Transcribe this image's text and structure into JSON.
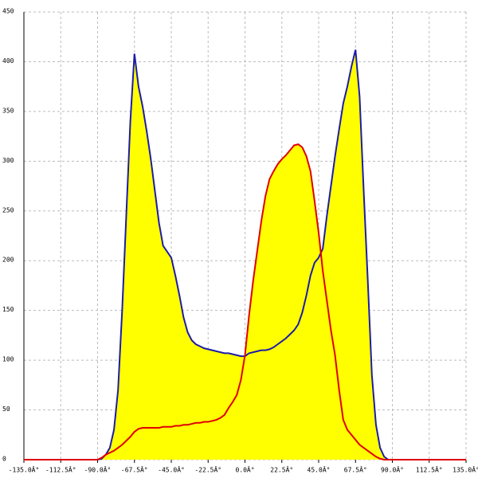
{
  "chart_data": {
    "type": "area",
    "x": [
      -135,
      -90,
      -87.5,
      -85,
      -82.5,
      -80,
      -77.5,
      -75,
      -72.5,
      -70,
      -67.5,
      -65,
      -62.5,
      -60,
      -57.5,
      -55,
      -52.5,
      -50,
      -47.5,
      -45,
      -42.5,
      -40,
      -37.5,
      -35,
      -32.5,
      -30,
      -27.5,
      -25,
      -22.5,
      -20,
      -17.5,
      -15,
      -12.5,
      -10,
      -7.5,
      -5,
      -2.5,
      0,
      2.5,
      5,
      7.5,
      10,
      12.5,
      15,
      17.5,
      20,
      22.5,
      25,
      27.5,
      30,
      32.5,
      35,
      37.5,
      40,
      42.5,
      45,
      47.5,
      50,
      52.5,
      55,
      57.5,
      60,
      62.5,
      65,
      67.5,
      70,
      72.5,
      75,
      77.5,
      80,
      82.5,
      85,
      87.5,
      90,
      135
    ],
    "series": [
      {
        "color": "#1c1ca8",
        "values": [
          0,
          0,
          1,
          5,
          12,
          30,
          70,
          150,
          245,
          340,
          408,
          375,
          355,
          330,
          302,
          270,
          238,
          215,
          209,
          203,
          185,
          165,
          143,
          128,
          120,
          116,
          114,
          112,
          111,
          110,
          109,
          108,
          107,
          107,
          106,
          105,
          104,
          104,
          107,
          108,
          109,
          110,
          110,
          111,
          113,
          116,
          119,
          122,
          126,
          130,
          136,
          148,
          165,
          185,
          198,
          203,
          212,
          245,
          275,
          305,
          332,
          358,
          375,
          395,
          412,
          365,
          270,
          180,
          85,
          35,
          12,
          3,
          0,
          0,
          0
        ]
      },
      {
        "color": "#e00000",
        "values": [
          0,
          0,
          2,
          5,
          7,
          9,
          12,
          15,
          19,
          23,
          28,
          31,
          32,
          32,
          32,
          32,
          32,
          33,
          33,
          33,
          34,
          34,
          35,
          35,
          36,
          37,
          37,
          38,
          38,
          39,
          40,
          42,
          45,
          52,
          58,
          65,
          80,
          105,
          145,
          180,
          210,
          240,
          265,
          282,
          290,
          297,
          302,
          306,
          311,
          316,
          317,
          314,
          305,
          290,
          260,
          228,
          190,
          160,
          130,
          105,
          70,
          40,
          30,
          25,
          20,
          15,
          12,
          9,
          6,
          3,
          1,
          0,
          0,
          0,
          0
        ]
      }
    ],
    "fill_color": "#ffff00",
    "xlim": [
      -135,
      135
    ],
    "xticks": [
      {
        "value": -135,
        "label": "-135.0Â°"
      },
      {
        "value": -112.5,
        "label": "-112.5Â°"
      },
      {
        "value": -90,
        "label": "-90.0Â°"
      },
      {
        "value": -67.5,
        "label": "-67.5Â°"
      },
      {
        "value": -45,
        "label": "-45.0Â°"
      },
      {
        "value": -22.5,
        "label": "-22.5Â°"
      },
      {
        "value": 0,
        "label": "0.0Â°"
      },
      {
        "value": 22.5,
        "label": "22.5Â°"
      },
      {
        "value": 45,
        "label": "45.0Â°"
      },
      {
        "value": 67.5,
        "label": "67.5Â°"
      },
      {
        "value": 90,
        "label": "90.0Â°"
      },
      {
        "value": 112.5,
        "label": "112.5Â°"
      },
      {
        "value": 135,
        "label": "135.0Â°"
      }
    ],
    "ylim": [
      0,
      450
    ],
    "yticks": [
      0,
      50,
      100,
      150,
      200,
      250,
      300,
      350,
      400,
      450
    ],
    "grid": true
  }
}
